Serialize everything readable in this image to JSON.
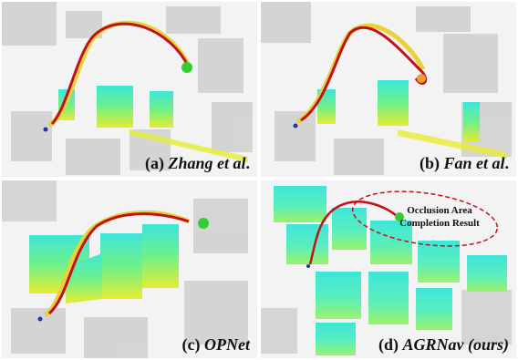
{
  "panels": [
    {
      "prefix": "(a) ",
      "name": "Zhang et al",
      "suffix": "."
    },
    {
      "prefix": "(b) ",
      "name": "Fan et al",
      "suffix": "."
    },
    {
      "prefix": "(c) ",
      "name": "OPNet",
      "suffix": ""
    },
    {
      "prefix": "(d) ",
      "name": "AGRNav (ours)",
      "suffix": ""
    }
  ],
  "annotation": {
    "line1": "Occlusion Area",
    "line2": "Completion Result"
  },
  "colors": {
    "trajectory_red": "#c0101a",
    "trajectory_yellow": "#e8d23a",
    "goal_green": "#33cc33",
    "obstacle_cyan": "#3de6d9",
    "obstacle_yellow": "#e6ec32",
    "gray_map": "#c9c9c9",
    "ellipse": "#c0101a"
  },
  "icons": [
    "goal-marker-icon",
    "start-marker-icon"
  ]
}
